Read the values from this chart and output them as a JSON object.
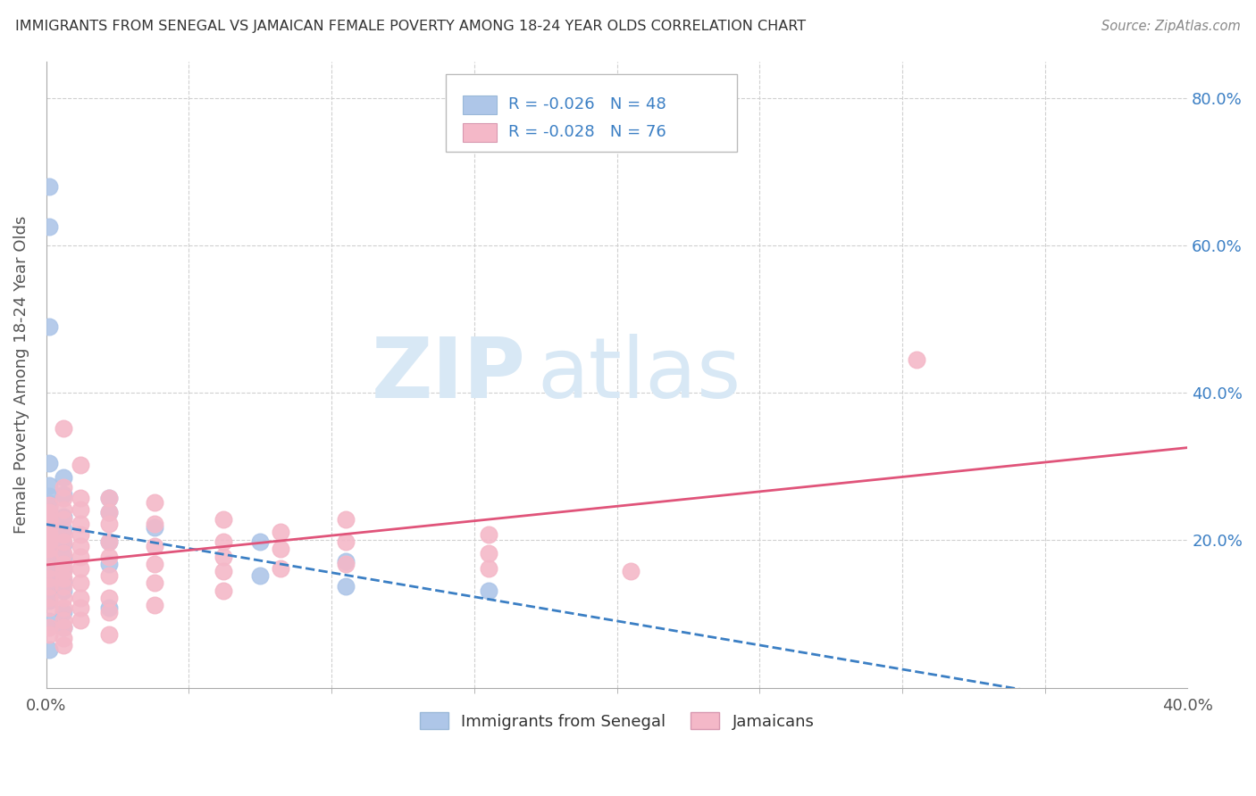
{
  "title": "IMMIGRANTS FROM SENEGAL VS JAMAICAN FEMALE POVERTY AMONG 18-24 YEAR OLDS CORRELATION CHART",
  "source": "Source: ZipAtlas.com",
  "ylabel": "Female Poverty Among 18-24 Year Olds",
  "xlim": [
    0.0,
    0.4
  ],
  "ylim": [
    0.0,
    0.85
  ],
  "xticks": [
    0.0,
    0.4
  ],
  "yticks": [
    0.2,
    0.4,
    0.6,
    0.8
  ],
  "ytick_labels_right": [
    "20.0%",
    "40.0%",
    "60.0%",
    "80.0%"
  ],
  "xtick_labels": [
    "0.0%",
    "40.0%"
  ],
  "legend_blue_label": "Immigrants from Senegal",
  "legend_pink_label": "Jamaicans",
  "r_blue": -0.026,
  "n_blue": 48,
  "r_pink": -0.028,
  "n_pink": 76,
  "watermark_zip": "ZIP",
  "watermark_atlas": "atlas",
  "blue_color": "#aec6e8",
  "pink_color": "#f4b8c8",
  "blue_line_color": "#3b7fc4",
  "pink_line_color": "#e0547a",
  "blue_scatter": [
    [
      0.001,
      0.68
    ],
    [
      0.001,
      0.625
    ],
    [
      0.001,
      0.49
    ],
    [
      0.001,
      0.305
    ],
    [
      0.001,
      0.275
    ],
    [
      0.001,
      0.26
    ],
    [
      0.001,
      0.25
    ],
    [
      0.001,
      0.245
    ],
    [
      0.001,
      0.238
    ],
    [
      0.001,
      0.232
    ],
    [
      0.001,
      0.222
    ],
    [
      0.001,
      0.212
    ],
    [
      0.001,
      0.205
    ],
    [
      0.001,
      0.2
    ],
    [
      0.001,
      0.193
    ],
    [
      0.001,
      0.188
    ],
    [
      0.001,
      0.182
    ],
    [
      0.001,
      0.173
    ],
    [
      0.001,
      0.165
    ],
    [
      0.001,
      0.158
    ],
    [
      0.001,
      0.152
    ],
    [
      0.001,
      0.14
    ],
    [
      0.001,
      0.128
    ],
    [
      0.001,
      0.118
    ],
    [
      0.001,
      0.09
    ],
    [
      0.001,
      0.052
    ],
    [
      0.006,
      0.285
    ],
    [
      0.006,
      0.262
    ],
    [
      0.006,
      0.232
    ],
    [
      0.006,
      0.215
    ],
    [
      0.006,
      0.195
    ],
    [
      0.006,
      0.178
    ],
    [
      0.006,
      0.16
    ],
    [
      0.006,
      0.145
    ],
    [
      0.006,
      0.132
    ],
    [
      0.006,
      0.102
    ],
    [
      0.006,
      0.082
    ],
    [
      0.022,
      0.258
    ],
    [
      0.022,
      0.238
    ],
    [
      0.022,
      0.198
    ],
    [
      0.022,
      0.168
    ],
    [
      0.022,
      0.108
    ],
    [
      0.038,
      0.218
    ],
    [
      0.075,
      0.198
    ],
    [
      0.075,
      0.152
    ],
    [
      0.105,
      0.172
    ],
    [
      0.105,
      0.138
    ],
    [
      0.155,
      0.132
    ]
  ],
  "pink_scatter": [
    [
      0.001,
      0.248
    ],
    [
      0.001,
      0.238
    ],
    [
      0.001,
      0.228
    ],
    [
      0.001,
      0.218
    ],
    [
      0.001,
      0.208
    ],
    [
      0.001,
      0.198
    ],
    [
      0.001,
      0.188
    ],
    [
      0.001,
      0.178
    ],
    [
      0.001,
      0.162
    ],
    [
      0.001,
      0.148
    ],
    [
      0.001,
      0.138
    ],
    [
      0.001,
      0.122
    ],
    [
      0.001,
      0.108
    ],
    [
      0.001,
      0.082
    ],
    [
      0.001,
      0.072
    ],
    [
      0.006,
      0.352
    ],
    [
      0.006,
      0.272
    ],
    [
      0.006,
      0.258
    ],
    [
      0.006,
      0.242
    ],
    [
      0.006,
      0.228
    ],
    [
      0.006,
      0.208
    ],
    [
      0.006,
      0.198
    ],
    [
      0.006,
      0.182
    ],
    [
      0.006,
      0.168
    ],
    [
      0.006,
      0.158
    ],
    [
      0.006,
      0.148
    ],
    [
      0.006,
      0.138
    ],
    [
      0.006,
      0.122
    ],
    [
      0.006,
      0.108
    ],
    [
      0.006,
      0.092
    ],
    [
      0.006,
      0.082
    ],
    [
      0.006,
      0.068
    ],
    [
      0.006,
      0.058
    ],
    [
      0.012,
      0.302
    ],
    [
      0.012,
      0.258
    ],
    [
      0.012,
      0.242
    ],
    [
      0.012,
      0.222
    ],
    [
      0.012,
      0.208
    ],
    [
      0.012,
      0.192
    ],
    [
      0.012,
      0.178
    ],
    [
      0.012,
      0.162
    ],
    [
      0.012,
      0.142
    ],
    [
      0.012,
      0.122
    ],
    [
      0.012,
      0.108
    ],
    [
      0.012,
      0.092
    ],
    [
      0.022,
      0.258
    ],
    [
      0.022,
      0.238
    ],
    [
      0.022,
      0.222
    ],
    [
      0.022,
      0.198
    ],
    [
      0.022,
      0.178
    ],
    [
      0.022,
      0.152
    ],
    [
      0.022,
      0.122
    ],
    [
      0.022,
      0.102
    ],
    [
      0.022,
      0.072
    ],
    [
      0.038,
      0.252
    ],
    [
      0.038,
      0.222
    ],
    [
      0.038,
      0.192
    ],
    [
      0.038,
      0.168
    ],
    [
      0.038,
      0.142
    ],
    [
      0.038,
      0.112
    ],
    [
      0.062,
      0.228
    ],
    [
      0.062,
      0.198
    ],
    [
      0.062,
      0.178
    ],
    [
      0.062,
      0.158
    ],
    [
      0.062,
      0.132
    ],
    [
      0.082,
      0.212
    ],
    [
      0.082,
      0.188
    ],
    [
      0.082,
      0.162
    ],
    [
      0.105,
      0.228
    ],
    [
      0.105,
      0.198
    ],
    [
      0.105,
      0.168
    ],
    [
      0.155,
      0.208
    ],
    [
      0.155,
      0.182
    ],
    [
      0.155,
      0.162
    ],
    [
      0.305,
      0.445
    ],
    [
      0.205,
      0.158
    ]
  ],
  "bg_color": "#ffffff",
  "grid_color": "#d0d0d0"
}
